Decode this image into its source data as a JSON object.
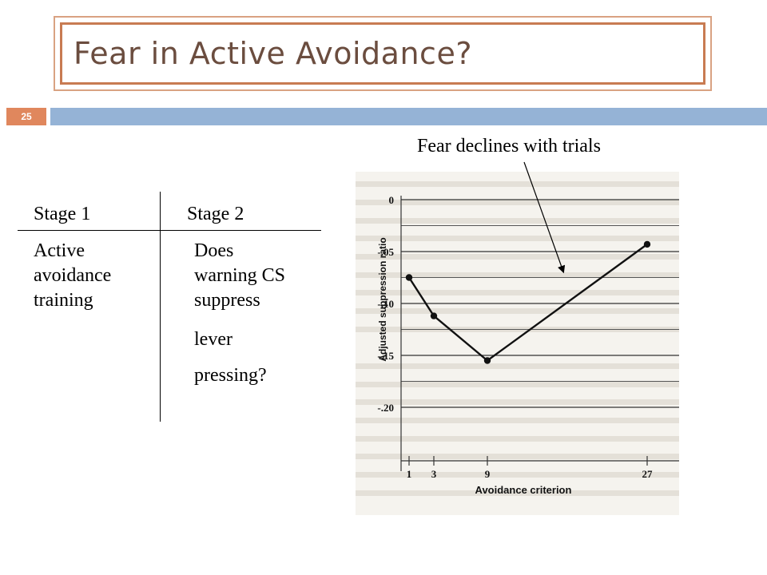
{
  "slide": {
    "title": "Fear in Active Avoidance?",
    "number": "25"
  },
  "table": {
    "col1_header": "Stage 1",
    "col2_header": "Stage 2",
    "col1_lines": [
      "Active",
      "avoidance",
      "training"
    ],
    "col2_lines": [
      "Does",
      "warning CS",
      "suppress",
      "lever",
      "pressing?"
    ]
  },
  "annotation": "Fear declines with trials",
  "colors": {
    "title_text": "#6b4d3f",
    "title_border": "#c87b52",
    "accent_bar": "#95b3d6",
    "slide_number_bg": "#e0875d"
  },
  "chart_data": {
    "type": "line",
    "xlabel": "Avoidance criterion",
    "ylabel": "Adjusted suppression ratio",
    "x_tick_labels": [
      "1",
      "3",
      "9",
      "27"
    ],
    "y_tick_labels": [
      "0",
      "-.05",
      "-.10",
      "-.15",
      "-.20"
    ],
    "ylim": [
      -0.2,
      0
    ],
    "series": [
      {
        "x": [
          1,
          3,
          9,
          27
        ],
        "y": [
          -0.075,
          -0.112,
          -0.155,
          -0.043
        ]
      }
    ]
  }
}
